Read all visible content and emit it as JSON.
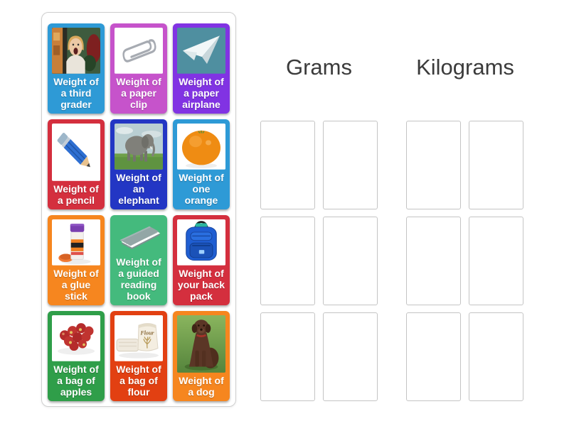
{
  "groups": [
    {
      "label": "Grams",
      "slot_count": 6
    },
    {
      "label": "Kilograms",
      "slot_count": 6
    }
  ],
  "cards": [
    {
      "label": "Weight of a third grader",
      "color": "#2e9ad6",
      "image": "third-grader"
    },
    {
      "label": "Weight of a paper clip",
      "color": "#c653cb",
      "image": "paper-clip"
    },
    {
      "label": "Weight of a paper airplane",
      "color": "#8133e3",
      "image": "paper-airplane"
    },
    {
      "label": "Weight of a pencil",
      "color": "#d42f3e",
      "image": "pencil"
    },
    {
      "label": "Weight of an elephant",
      "color": "#2336c4",
      "image": "elephant"
    },
    {
      "label": "Weight of one orange",
      "color": "#2e9ad6",
      "image": "orange"
    },
    {
      "label": "Weight of a glue stick",
      "color": "#f6861f",
      "image": "glue-stick"
    },
    {
      "label": "Weight of a guided reading book",
      "color": "#44ba7d",
      "image": "book"
    },
    {
      "label": "Weight of your back pack",
      "color": "#d42f3e",
      "image": "backpack"
    },
    {
      "label": "Weight of a bag of apples",
      "color": "#2f9e49",
      "image": "apples"
    },
    {
      "label": "Weight of a bag of flour",
      "color": "#e24012",
      "image": "flour",
      "image_text": "Flour"
    },
    {
      "label": "Weight of a dog",
      "color": "#f6861f",
      "image": "dog"
    }
  ]
}
